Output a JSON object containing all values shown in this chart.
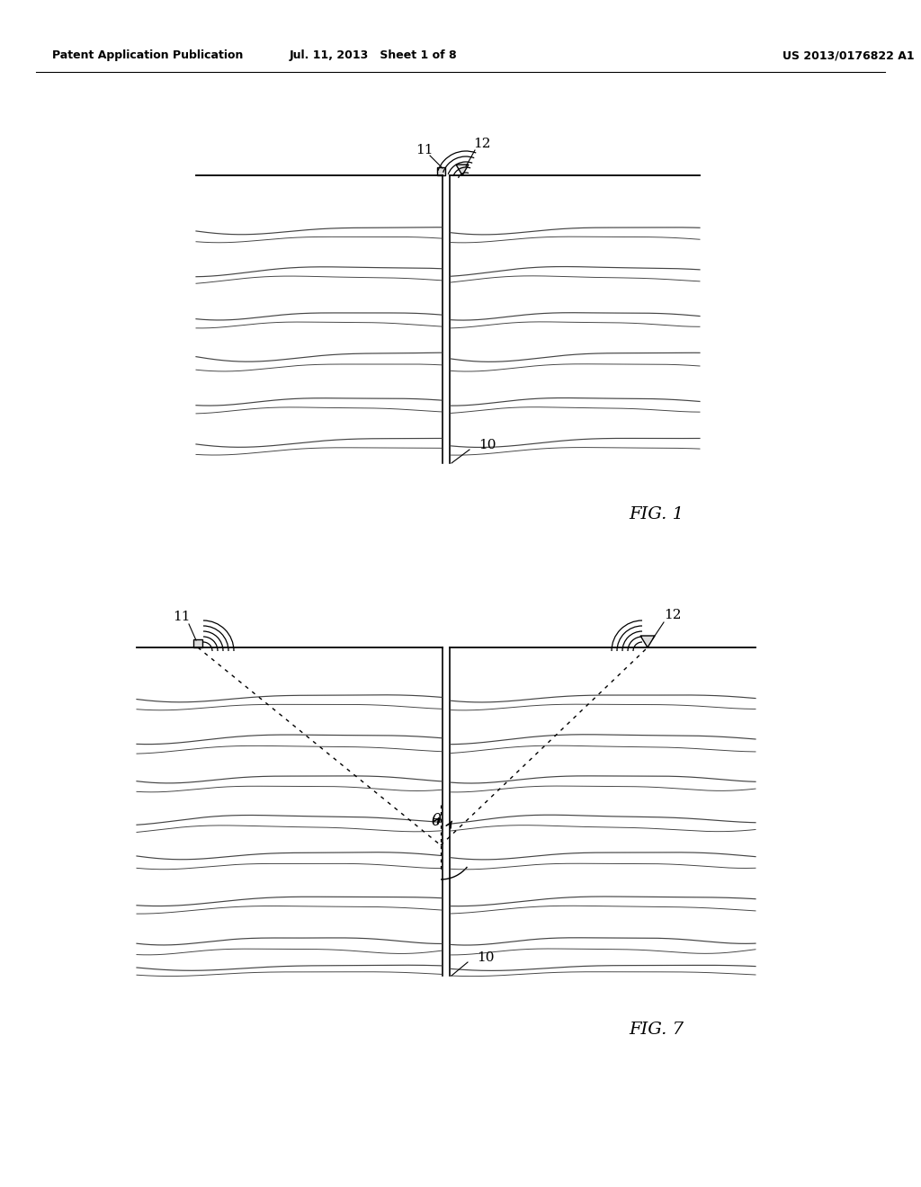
{
  "bg_color": "#ffffff",
  "header_left": "Patent Application Publication",
  "header_mid": "Jul. 11, 2013   Sheet 1 of 8",
  "header_right": "US 2013/0176822 A1",
  "fig1_label": "FIG. 1",
  "fig7_label": "FIG. 7",
  "label_10a": "10",
  "label_11a": "11",
  "label_12a": "12",
  "label_10b": "10",
  "label_11b": "11",
  "label_12b": "12",
  "label_theta": "θ",
  "line_color": "#000000",
  "line_width": 1.2,
  "seismic_line_color": "#444444"
}
